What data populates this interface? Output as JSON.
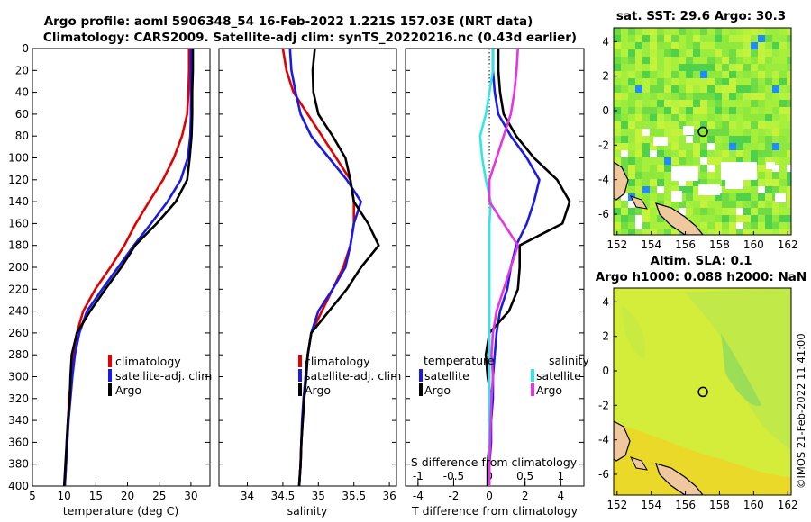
{
  "figure": {
    "title_line1": "Argo profile: aoml 5906348_54 16-Feb-2022 1.221S 157.03E (NRT data)",
    "title_line2": "Climatology: CARS2009. Satellite-adj clim: synTS_20220216.nc (0.43d earlier)",
    "credit": "©IMOS 21-Feb-2022 11:41:00"
  },
  "colors": {
    "climatology": "#e00000",
    "satellite": "#1a1ae6",
    "argo": "#000000",
    "t_satellite": "#1a1ae6",
    "s_satellite": "#33e6e6",
    "s_argo": "#e633e6"
  },
  "chart_data": [
    {
      "id": "temperature",
      "type": "line",
      "xlabel": "temperature (deg C)",
      "xlim": [
        5,
        33
      ],
      "xticks": [
        5,
        10,
        15,
        20,
        25,
        30
      ],
      "ylim": [
        400,
        0
      ],
      "yticks": [
        0,
        20,
        40,
        60,
        80,
        100,
        120,
        140,
        160,
        180,
        200,
        220,
        240,
        260,
        280,
        300,
        320,
        340,
        360,
        380,
        400
      ],
      "legend": [
        "climatology",
        "satellite-adj. clim",
        "Argo"
      ],
      "series": [
        {
          "name": "climatology",
          "color": "#e00000",
          "points": [
            [
              29.7,
              0
            ],
            [
              29.7,
              20
            ],
            [
              29.6,
              40
            ],
            [
              29.4,
              60
            ],
            [
              28.6,
              80
            ],
            [
              27.3,
              100
            ],
            [
              25.6,
              120
            ],
            [
              23.4,
              140
            ],
            [
              21.3,
              160
            ],
            [
              19.5,
              180
            ],
            [
              17.3,
              200
            ],
            [
              14.9,
              220
            ],
            [
              13.0,
              240
            ],
            [
              12.0,
              260
            ],
            [
              11.4,
              280
            ],
            [
              11.1,
              300
            ],
            [
              10.8,
              320
            ],
            [
              10.6,
              340
            ],
            [
              10.4,
              360
            ],
            [
              10.3,
              380
            ],
            [
              10.1,
              400
            ]
          ]
        },
        {
          "name": "satellite-adj. clim",
          "color": "#1a1ae6",
          "points": [
            [
              30.0,
              0
            ],
            [
              30.0,
              20
            ],
            [
              30.0,
              40
            ],
            [
              30.0,
              60
            ],
            [
              29.9,
              80
            ],
            [
              29.5,
              100
            ],
            [
              28.4,
              120
            ],
            [
              26.3,
              140
            ],
            [
              23.7,
              160
            ],
            [
              21.0,
              180
            ],
            [
              18.5,
              200
            ],
            [
              16.0,
              220
            ],
            [
              13.6,
              240
            ],
            [
              12.4,
              260
            ],
            [
              11.7,
              280
            ],
            [
              11.3,
              300
            ],
            [
              11.0,
              320
            ],
            [
              10.7,
              340
            ],
            [
              10.5,
              360
            ],
            [
              10.3,
              380
            ],
            [
              10.1,
              400
            ]
          ]
        },
        {
          "name": "Argo",
          "color": "#000000",
          "points": [
            [
              30.3,
              0
            ],
            [
              30.3,
              20
            ],
            [
              30.2,
              40
            ],
            [
              30.2,
              60
            ],
            [
              30.1,
              80
            ],
            [
              29.8,
              100
            ],
            [
              29.4,
              120
            ],
            [
              27.6,
              140
            ],
            [
              24.6,
              160
            ],
            [
              21.2,
              180
            ],
            [
              19.0,
              200
            ],
            [
              16.5,
              220
            ],
            [
              14.1,
              240
            ],
            [
              12.0,
              260
            ],
            [
              11.2,
              280
            ],
            [
              11.0,
              300
            ],
            [
              10.9,
              320
            ],
            [
              10.6,
              340
            ],
            [
              10.4,
              360
            ],
            [
              10.2,
              380
            ],
            [
              10.0,
              400
            ]
          ]
        }
      ]
    },
    {
      "id": "salinity",
      "type": "line",
      "xlabel": "salinity",
      "xlim": [
        33.6,
        36.1
      ],
      "xticks": [
        34,
        34.5,
        35,
        35.5,
        36
      ],
      "ylim": [
        400,
        0
      ],
      "legend": [
        "climatology",
        "satellite-adj. clim",
        "Argo"
      ],
      "series": [
        {
          "name": "climatology",
          "color": "#e00000",
          "points": [
            [
              34.5,
              0
            ],
            [
              34.55,
              20
            ],
            [
              34.65,
              40
            ],
            [
              34.85,
              60
            ],
            [
              35.05,
              80
            ],
            [
              35.25,
              100
            ],
            [
              35.45,
              120
            ],
            [
              35.5,
              140
            ],
            [
              35.5,
              160
            ],
            [
              35.45,
              180
            ],
            [
              35.35,
              200
            ],
            [
              35.2,
              220
            ],
            [
              35.05,
              240
            ],
            [
              34.9,
              260
            ],
            [
              34.85,
              280
            ],
            [
              34.82,
              300
            ],
            [
              34.8,
              320
            ],
            [
              34.78,
              340
            ],
            [
              34.76,
              360
            ],
            [
              34.75,
              380
            ],
            [
              34.73,
              400
            ]
          ]
        },
        {
          "name": "satellite-adj. clim",
          "color": "#1a1ae6",
          "points": [
            [
              34.6,
              0
            ],
            [
              34.62,
              20
            ],
            [
              34.68,
              40
            ],
            [
              34.75,
              60
            ],
            [
              34.9,
              80
            ],
            [
              35.15,
              100
            ],
            [
              35.4,
              120
            ],
            [
              35.6,
              140
            ],
            [
              35.5,
              160
            ],
            [
              35.45,
              180
            ],
            [
              35.38,
              200
            ],
            [
              35.2,
              220
            ],
            [
              35.0,
              240
            ],
            [
              34.9,
              260
            ],
            [
              34.85,
              280
            ],
            [
              34.82,
              300
            ],
            [
              34.79,
              320
            ],
            [
              34.77,
              340
            ],
            [
              34.76,
              360
            ],
            [
              34.75,
              380
            ],
            [
              34.73,
              400
            ]
          ]
        },
        {
          "name": "Argo",
          "color": "#000000",
          "points": [
            [
              34.95,
              0
            ],
            [
              34.92,
              20
            ],
            [
              34.93,
              40
            ],
            [
              35.0,
              60
            ],
            [
              35.2,
              80
            ],
            [
              35.38,
              100
            ],
            [
              35.45,
              120
            ],
            [
              35.5,
              140
            ],
            [
              35.7,
              160
            ],
            [
              35.85,
              180
            ],
            [
              35.6,
              200
            ],
            [
              35.4,
              220
            ],
            [
              35.15,
              240
            ],
            [
              34.9,
              260
            ],
            [
              34.85,
              280
            ],
            [
              34.83,
              300
            ],
            [
              34.8,
              320
            ],
            [
              34.78,
              340
            ],
            [
              34.76,
              360
            ],
            [
              34.75,
              380
            ],
            [
              34.73,
              400
            ]
          ]
        }
      ]
    },
    {
      "id": "difference",
      "type": "line",
      "xlabel": "T difference from climatology",
      "xlabel_top": "S difference from climatology",
      "xlim": [
        -4.7,
        5.3
      ],
      "xticks": [
        -4,
        -2,
        0,
        2,
        4
      ],
      "top_xlim": [
        -1.175,
        1.325
      ],
      "top_xticks": [
        -1,
        -0.5,
        0,
        0.5,
        1
      ],
      "ylim": [
        400,
        0
      ],
      "legend_left_title": "temperature",
      "legend_right_title": "salinity",
      "legend_left": [
        "satellite",
        "Argo"
      ],
      "legend_right": [
        "satellite",
        "Argo"
      ],
      "series": [
        {
          "name": "T satellite",
          "color": "#1a1ae6",
          "points": [
            [
              0.2,
              0
            ],
            [
              0.2,
              20
            ],
            [
              0.3,
              40
            ],
            [
              0.5,
              60
            ],
            [
              1.2,
              80
            ],
            [
              2.1,
              100
            ],
            [
              2.8,
              120
            ],
            [
              2.5,
              140
            ],
            [
              2.1,
              160
            ],
            [
              1.5,
              180
            ],
            [
              1.2,
              200
            ],
            [
              1.0,
              220
            ],
            [
              0.6,
              240
            ],
            [
              0.4,
              260
            ],
            [
              0.3,
              280
            ],
            [
              0.2,
              300
            ],
            [
              0.2,
              320
            ],
            [
              0.1,
              340
            ],
            [
              0.1,
              360
            ],
            [
              0.0,
              380
            ],
            [
              0.0,
              400
            ]
          ]
        },
        {
          "name": "T Argo",
          "color": "#000000",
          "points": [
            [
              0.5,
              0
            ],
            [
              0.5,
              20
            ],
            [
              0.6,
              40
            ],
            [
              0.8,
              60
            ],
            [
              1.5,
              80
            ],
            [
              2.5,
              100
            ],
            [
              3.8,
              120
            ],
            [
              4.5,
              140
            ],
            [
              4.1,
              160
            ],
            [
              1.7,
              180
            ],
            [
              1.7,
              200
            ],
            [
              1.6,
              220
            ],
            [
              1.1,
              240
            ],
            [
              0.0,
              260
            ],
            [
              -0.2,
              280
            ],
            [
              -0.1,
              300
            ],
            [
              0.1,
              320
            ],
            [
              0.0,
              340
            ],
            [
              0.0,
              360
            ],
            [
              -0.1,
              380
            ],
            [
              -0.1,
              400
            ]
          ]
        },
        {
          "name": "S satellite",
          "color": "#33e6e6",
          "points": [
            [
              0.05,
              0
            ],
            [
              0.05,
              20
            ],
            [
              0.0,
              40
            ],
            [
              -0.05,
              60
            ],
            [
              -0.13,
              80
            ],
            [
              -0.1,
              100
            ],
            [
              -0.05,
              120
            ],
            [
              0.02,
              140
            ],
            [
              0.0,
              160
            ],
            [
              0.0,
              180
            ],
            [
              0.0,
              200
            ],
            [
              0.0,
              220
            ],
            [
              0.0,
              240
            ],
            [
              0.0,
              260
            ],
            [
              0.0,
              280
            ],
            [
              0.0,
              300
            ],
            [
              0.0,
              320
            ],
            [
              0.0,
              340
            ],
            [
              0.0,
              360
            ],
            [
              0.0,
              380
            ],
            [
              0.0,
              400
            ]
          ]
        },
        {
          "name": "S Argo",
          "color": "#e633e6",
          "points": [
            [
              0.4,
              0
            ],
            [
              0.38,
              20
            ],
            [
              0.35,
              40
            ],
            [
              0.3,
              60
            ],
            [
              0.2,
              80
            ],
            [
              0.1,
              100
            ],
            [
              0.0,
              120
            ],
            [
              0.0,
              140
            ],
            [
              0.2,
              160
            ],
            [
              0.4,
              180
            ],
            [
              0.3,
              200
            ],
            [
              0.2,
              220
            ],
            [
              0.1,
              240
            ],
            [
              0.05,
              260
            ],
            [
              0.03,
              280
            ],
            [
              0.05,
              300
            ],
            [
              0.03,
              320
            ],
            [
              0.02,
              340
            ],
            [
              0.01,
              360
            ],
            [
              0.0,
              380
            ],
            [
              0.0,
              400
            ]
          ]
        }
      ]
    },
    {
      "id": "sst-map",
      "type": "heatmap",
      "title": "sat. SST: 29.6 Argo: 30.3",
      "xlim": [
        151.8,
        162.2
      ],
      "ylim": [
        -7.2,
        4.8
      ],
      "xticks": [
        152,
        154,
        156,
        158,
        160,
        162
      ],
      "yticks": [
        4,
        2,
        0,
        -2,
        -4,
        -6
      ],
      "marker": [
        157.03,
        -1.221
      ]
    },
    {
      "id": "sla-map",
      "type": "heatmap",
      "title_line1": "Altim. SLA: 0.1",
      "title_line2": "Argo h1000: 0.088 h2000: NaN",
      "xlim": [
        151.8,
        162.2
      ],
      "ylim": [
        -7.2,
        4.8
      ],
      "xticks": [
        152,
        154,
        156,
        158,
        160,
        162
      ],
      "yticks": [
        4,
        2,
        0,
        -2,
        -4,
        -6
      ],
      "marker": [
        157.03,
        -1.221
      ]
    }
  ]
}
